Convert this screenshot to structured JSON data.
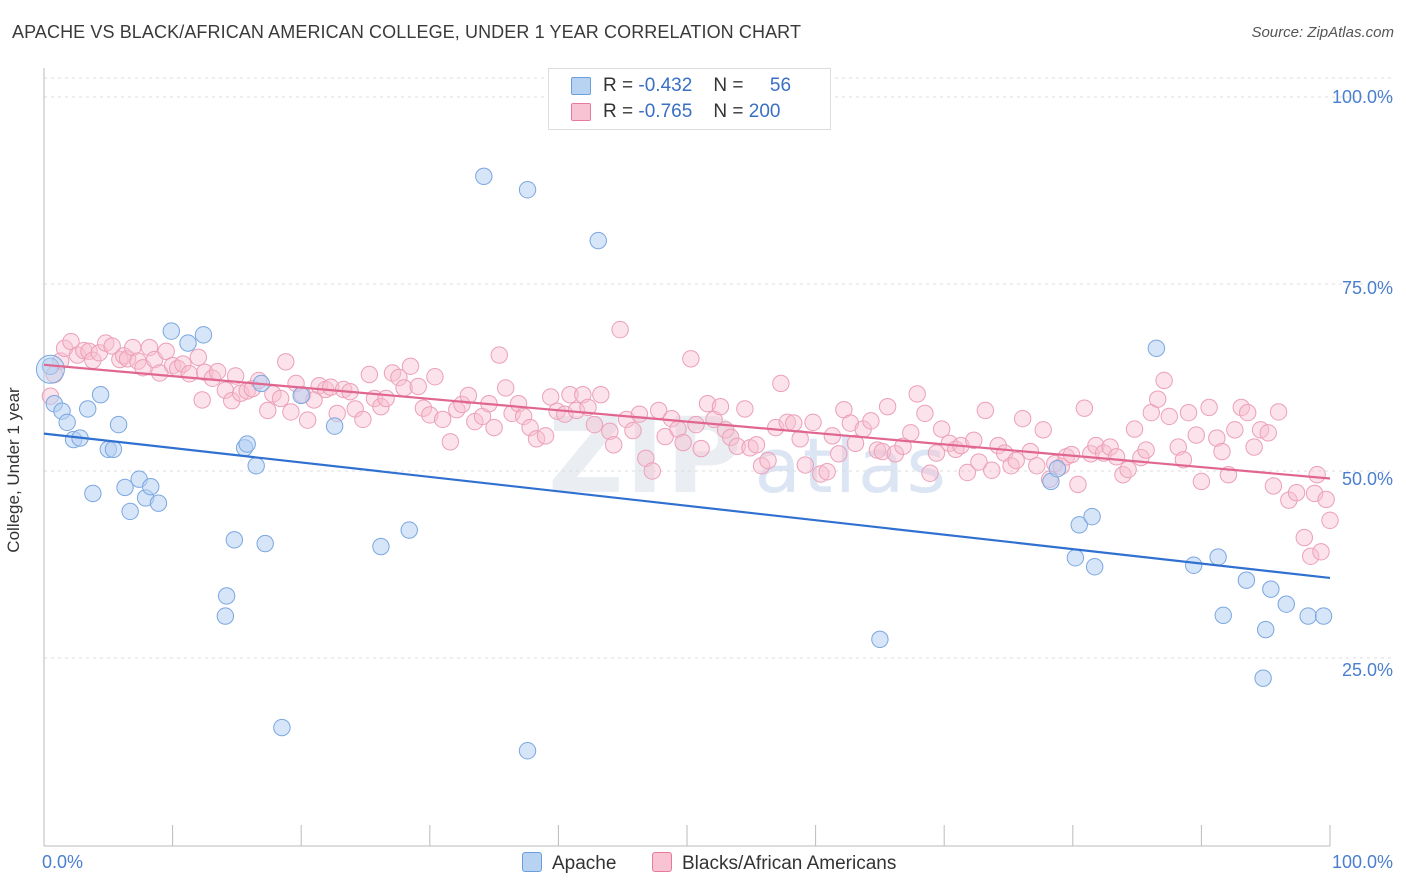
{
  "header": {
    "title": "APACHE VS BLACK/AFRICAN AMERICAN COLLEGE, UNDER 1 YEAR CORRELATION CHART",
    "source": "Source: ZipAtlas.com"
  },
  "watermark": {
    "zip": "ZIP",
    "atlas": "atlas"
  },
  "legend": {
    "rows": [
      {
        "r_label": "R =",
        "r_value": "-0.432",
        "n_label": "N =",
        "n_value": "56",
        "color": "#a9c8ee"
      },
      {
        "r_label": "R =",
        "r_value": "-0.765",
        "n_label": "N =",
        "n_value": "200",
        "color": "#f5b5c8"
      }
    ]
  },
  "bottom_legend": {
    "apache": "Apache",
    "black": "Blacks/African Americans"
  },
  "axis": {
    "ylabel": "College, Under 1 year",
    "x_ticks": {
      "left": "0.0%",
      "right": "100.0%"
    },
    "y_ticks": [
      "100.0%",
      "75.0%",
      "50.0%",
      "25.0%"
    ]
  },
  "colors": {
    "apache": "#6b9fdc",
    "apache_fill": "#b8d2f2",
    "black": "#e97a9c",
    "black_fill": "#f8c3d3",
    "apache_line": "#3070d0",
    "black_line": "#e06690"
  },
  "chart_data": {
    "type": "scatter",
    "title": "APACHE VS BLACK/AFRICAN AMERICAN COLLEGE, UNDER 1 YEAR CORRELATION CHART",
    "xlabel": "",
    "ylabel": "College, Under 1 year",
    "xlim": [
      0,
      100
    ],
    "ylim": [
      0,
      102
    ],
    "grid": true,
    "series": [
      {
        "name": "Apache",
        "trend": [
          [
            0,
            55.0
          ],
          [
            100,
            35.7
          ]
        ],
        "points": [
          [
            0.5,
            64
          ],
          [
            0.8,
            59
          ],
          [
            1.4,
            58
          ],
          [
            1.8,
            56.5
          ],
          [
            2.3,
            54.2
          ],
          [
            2.8,
            54.4
          ],
          [
            3.4,
            58.3
          ],
          [
            3.8,
            47
          ],
          [
            4.4,
            60.2
          ],
          [
            5,
            52.9
          ],
          [
            5.4,
            52.9
          ],
          [
            5.8,
            56.2
          ],
          [
            6.3,
            47.8
          ],
          [
            6.7,
            44.6
          ],
          [
            7.4,
            48.9
          ],
          [
            7.9,
            46.4
          ],
          [
            8.3,
            47.9
          ],
          [
            8.9,
            45.7
          ],
          [
            9.9,
            68.7
          ],
          [
            11.2,
            67.1
          ],
          [
            12.4,
            68.2
          ],
          [
            14.8,
            40.8
          ],
          [
            14.2,
            33.3
          ],
          [
            14.1,
            30.6
          ],
          [
            15.6,
            53.1
          ],
          [
            15.8,
            53.6
          ],
          [
            16.5,
            50.7
          ],
          [
            17.2,
            40.3
          ],
          [
            16.9,
            61.7
          ],
          [
            18.5,
            15.7
          ],
          [
            20,
            60.1
          ],
          [
            22.6,
            56
          ],
          [
            26.2,
            39.9
          ],
          [
            28.4,
            42.1
          ],
          [
            34.2,
            89.4
          ],
          [
            37.6,
            87.6
          ],
          [
            37.6,
            12.6
          ],
          [
            43.1,
            80.8
          ],
          [
            65,
            27.5
          ],
          [
            78.3,
            48.6
          ],
          [
            78.8,
            50.3
          ],
          [
            80.2,
            38.4
          ],
          [
            81.7,
            37.2
          ],
          [
            80.5,
            42.8
          ],
          [
            81.5,
            43.9
          ],
          [
            86.5,
            66.4
          ],
          [
            89.4,
            37.4
          ],
          [
            91.3,
            38.5
          ],
          [
            91.7,
            30.7
          ],
          [
            93.5,
            35.4
          ],
          [
            94.8,
            22.3
          ],
          [
            95,
            28.8
          ],
          [
            95.4,
            34.2
          ],
          [
            96.6,
            32.2
          ],
          [
            98.3,
            30.6
          ],
          [
            99.5,
            30.6
          ]
        ]
      },
      {
        "name": "Blacks/African Americans",
        "trend": [
          [
            0,
            64.2
          ],
          [
            100,
            49.0
          ]
        ],
        "points": [
          [
            0.5,
            60
          ],
          [
            0.8,
            62.9
          ],
          [
            1.3,
            64.7
          ],
          [
            1.6,
            66.4
          ],
          [
            2.1,
            67.3
          ],
          [
            2.6,
            65.5
          ],
          [
            3.1,
            66.1
          ],
          [
            3.5,
            66
          ],
          [
            3.8,
            64.8
          ],
          [
            4.3,
            65.8
          ],
          [
            4.8,
            67.1
          ],
          [
            5.3,
            66.7
          ],
          [
            5.9,
            64.9
          ],
          [
            6.2,
            65.4
          ],
          [
            6.5,
            65
          ],
          [
            6.9,
            66.5
          ],
          [
            7.3,
            64.7
          ],
          [
            7.7,
            63.8
          ],
          [
            8.2,
            66.5
          ],
          [
            8.6,
            64.9
          ],
          [
            9,
            63.1
          ],
          [
            9.5,
            66
          ],
          [
            10,
            64.1
          ],
          [
            10.4,
            63.7
          ],
          [
            10.8,
            64.3
          ],
          [
            11.3,
            63
          ],
          [
            12,
            65.2
          ],
          [
            12.5,
            63.2
          ],
          [
            12.3,
            59.5
          ],
          [
            13.1,
            62.4
          ],
          [
            13.5,
            63.3
          ],
          [
            14.1,
            60.8
          ],
          [
            14.6,
            59.4
          ],
          [
            14.9,
            62.7
          ],
          [
            15.3,
            60.4
          ],
          [
            15.8,
            60.7
          ],
          [
            16.2,
            61
          ],
          [
            16.7,
            62.1
          ],
          [
            17.4,
            58.1
          ],
          [
            17.8,
            60.3
          ],
          [
            18.4,
            59.7
          ],
          [
            18.8,
            64.6
          ],
          [
            19.2,
            57.9
          ],
          [
            19.6,
            61.7
          ],
          [
            20.1,
            60.2
          ],
          [
            20.5,
            56.8
          ],
          [
            21,
            59.5
          ],
          [
            21.4,
            61.4
          ],
          [
            21.9,
            60.9
          ],
          [
            22.3,
            61.2
          ],
          [
            22.8,
            57.7
          ],
          [
            23.3,
            60.9
          ],
          [
            23.8,
            60.6
          ],
          [
            24.2,
            58.3
          ],
          [
            24.8,
            56.9
          ],
          [
            25.3,
            62.9
          ],
          [
            25.7,
            59.7
          ],
          [
            26.2,
            58.6
          ],
          [
            26.6,
            59.7
          ],
          [
            27.1,
            63.1
          ],
          [
            27.6,
            62.5
          ],
          [
            28,
            61.1
          ],
          [
            28.5,
            64
          ],
          [
            29.1,
            61.3
          ],
          [
            29.5,
            58.4
          ],
          [
            30,
            57.5
          ],
          [
            30.4,
            62.6
          ],
          [
            31,
            56.9
          ],
          [
            31.6,
            53.9
          ],
          [
            32.1,
            58.2
          ],
          [
            32.5,
            58.9
          ],
          [
            33,
            60.1
          ],
          [
            33.5,
            56.6
          ],
          [
            34.1,
            57.3
          ],
          [
            34.6,
            59
          ],
          [
            35,
            55.8
          ],
          [
            35.4,
            65.5
          ],
          [
            35.9,
            61.1
          ],
          [
            36.4,
            57.7
          ],
          [
            36.9,
            59
          ],
          [
            37.3,
            57.3
          ],
          [
            37.8,
            55.8
          ],
          [
            38.3,
            54.3
          ],
          [
            39,
            54.7
          ],
          [
            39.4,
            59.9
          ],
          [
            39.9,
            58
          ],
          [
            40.5,
            57.6
          ],
          [
            40.9,
            60.2
          ],
          [
            41.4,
            58.1
          ],
          [
            41.9,
            60.2
          ],
          [
            42.3,
            58.5
          ],
          [
            42.8,
            56.2
          ],
          [
            43.3,
            60.2
          ],
          [
            44,
            55.3
          ],
          [
            44.3,
            53.5
          ],
          [
            44.8,
            68.9
          ],
          [
            45.3,
            56.9
          ],
          [
            45.8,
            55.4
          ],
          [
            46.3,
            57.6
          ],
          [
            46.8,
            51.7
          ],
          [
            47.3,
            50
          ],
          [
            47.8,
            58.1
          ],
          [
            48.3,
            54.6
          ],
          [
            48.8,
            57
          ],
          [
            49.3,
            55.6
          ],
          [
            49.7,
            53.8
          ],
          [
            50.3,
            65
          ],
          [
            50.7,
            56.2
          ],
          [
            51.1,
            53
          ],
          [
            51.6,
            59
          ],
          [
            52.1,
            56.9
          ],
          [
            52.6,
            58.6
          ],
          [
            53,
            55.5
          ],
          [
            53.4,
            54.5
          ],
          [
            53.9,
            53.3
          ],
          [
            54.5,
            58.3
          ],
          [
            54.9,
            53.1
          ],
          [
            55.4,
            53.5
          ],
          [
            55.8,
            50.7
          ],
          [
            56.3,
            51.4
          ],
          [
            56.9,
            55.8
          ],
          [
            57.3,
            61.7
          ],
          [
            57.8,
            56.5
          ],
          [
            58.3,
            56.4
          ],
          [
            58.8,
            54.3
          ],
          [
            59.2,
            50.8
          ],
          [
            59.8,
            56.5
          ],
          [
            60.4,
            49.6
          ],
          [
            60.9,
            49.9
          ],
          [
            61.3,
            54.7
          ],
          [
            61.8,
            52.3
          ],
          [
            62.2,
            58.2
          ],
          [
            62.7,
            56.4
          ],
          [
            63.1,
            53.7
          ],
          [
            63.7,
            55.6
          ],
          [
            64.3,
            56.7
          ],
          [
            64.8,
            52.8
          ],
          [
            65.2,
            52.6
          ],
          [
            65.6,
            58.6
          ],
          [
            66.2,
            52.3
          ],
          [
            66.8,
            53.3
          ],
          [
            67.4,
            55.1
          ],
          [
            67.9,
            60.3
          ],
          [
            68.5,
            57.7
          ],
          [
            68.9,
            49.7
          ],
          [
            69.4,
            52.4
          ],
          [
            69.8,
            55.6
          ],
          [
            70.4,
            53.7
          ],
          [
            70.9,
            52.9
          ],
          [
            71.3,
            53.4
          ],
          [
            71.8,
            49.8
          ],
          [
            72.3,
            54.1
          ],
          [
            72.7,
            51.2
          ],
          [
            73.2,
            58.1
          ],
          [
            73.7,
            50.1
          ],
          [
            74.2,
            53.4
          ],
          [
            74.7,
            52.4
          ],
          [
            75.2,
            50.7
          ],
          [
            75.6,
            51.4
          ],
          [
            76.1,
            57
          ],
          [
            76.7,
            52.6
          ],
          [
            77.2,
            50.7
          ],
          [
            77.7,
            55.5
          ],
          [
            78.2,
            48.9
          ],
          [
            78.6,
            51
          ],
          [
            79.1,
            50.6
          ],
          [
            79.5,
            51.9
          ],
          [
            79.9,
            52.2
          ],
          [
            80.4,
            48.2
          ],
          [
            80.9,
            58.4
          ],
          [
            81.4,
            52.3
          ],
          [
            81.8,
            53.4
          ],
          [
            82.4,
            52.4
          ],
          [
            82.9,
            53.2
          ],
          [
            83.4,
            51.9
          ],
          [
            83.9,
            49.5
          ],
          [
            84.3,
            50.2
          ],
          [
            84.8,
            55.6
          ],
          [
            85.3,
            51.8
          ],
          [
            85.7,
            52.8
          ],
          [
            86.1,
            57.8
          ],
          [
            86.6,
            59.6
          ],
          [
            87.1,
            62.1
          ],
          [
            87.5,
            57.3
          ],
          [
            88.2,
            53.2
          ],
          [
            88.6,
            51.5
          ],
          [
            89,
            57.8
          ],
          [
            89.6,
            54.8
          ],
          [
            90,
            48.6
          ],
          [
            90.6,
            58.5
          ],
          [
            91.2,
            54.4
          ],
          [
            91.6,
            52.6
          ],
          [
            92.1,
            49.5
          ],
          [
            92.6,
            55.5
          ],
          [
            93.1,
            58.5
          ],
          [
            93.6,
            57.8
          ],
          [
            94.1,
            53.2
          ],
          [
            94.6,
            55.5
          ],
          [
            95.2,
            55.1
          ],
          [
            95.6,
            48
          ],
          [
            96,
            57.9
          ],
          [
            96.8,
            46.1
          ],
          [
            97.4,
            47.1
          ],
          [
            98,
            41.1
          ],
          [
            98.5,
            38.6
          ],
          [
            98.8,
            47
          ],
          [
            99,
            49.5
          ],
          [
            99.3,
            39.2
          ],
          [
            99.7,
            46.2
          ],
          [
            100,
            43.4
          ]
        ]
      }
    ]
  }
}
